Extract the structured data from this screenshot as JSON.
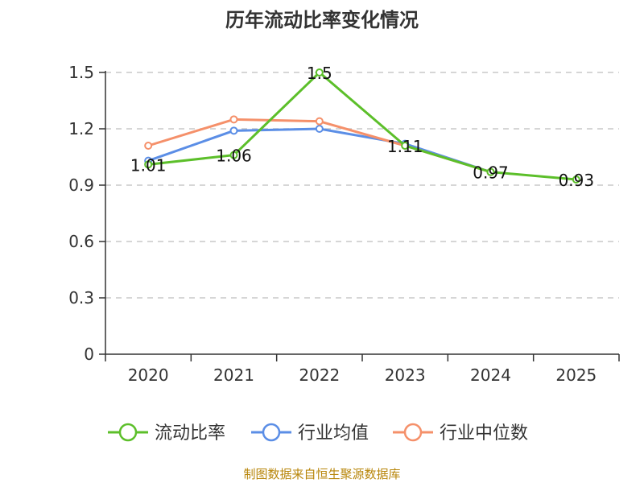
{
  "chart_data": {
    "type": "line",
    "title": "历年流动比率变化情况",
    "categories": [
      "2020",
      "2021",
      "2022",
      "2023",
      "2024",
      "2025"
    ],
    "ylim": [
      0,
      1.5
    ],
    "yticks": [
      "0",
      "0.3",
      "0.6",
      "0.9",
      "1.2",
      "1.5"
    ],
    "grid": true,
    "legend_position": "bottom",
    "series": [
      {
        "name": "流动比率",
        "color": "#5cbf2a",
        "values": [
          1.01,
          1.06,
          1.5,
          1.11,
          0.97,
          0.93
        ],
        "labels": [
          "1.01",
          "1.06",
          "1.5",
          "1.11",
          "0.97",
          "0.93"
        ]
      },
      {
        "name": "行业均值",
        "color": "#5b8ee6",
        "values": [
          1.03,
          1.19,
          1.2,
          1.12,
          0.97,
          null
        ]
      },
      {
        "name": "行业中位数",
        "color": "#f5906a",
        "values": [
          1.11,
          1.25,
          1.24,
          1.11,
          0.97,
          null
        ]
      }
    ],
    "source": "制图数据来自恒生聚源数据库"
  }
}
